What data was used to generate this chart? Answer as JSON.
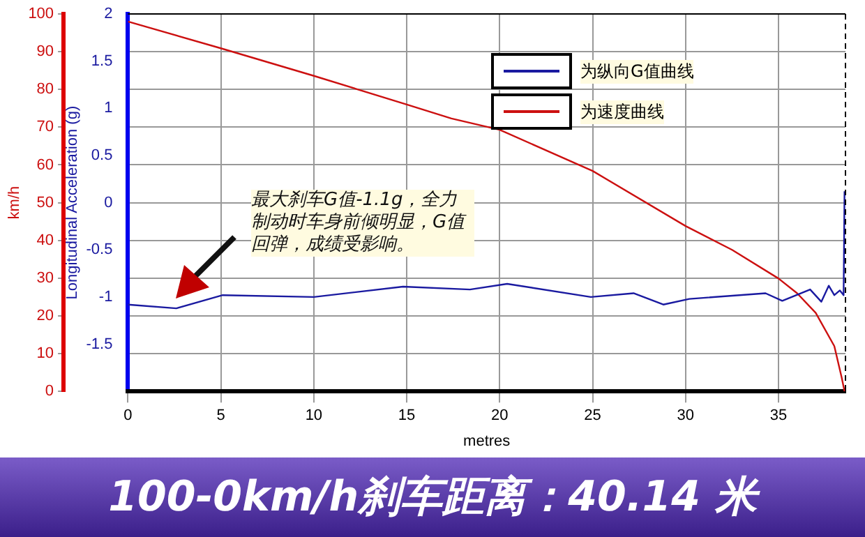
{
  "chart_data": {
    "type": "line",
    "title": "100-0km/h刹车距离：40.14 米",
    "xlabel": "metres",
    "ylabel": "km/h",
    "y2label": "Longitudinal Acceleration (g)",
    "annotations": [
      "最大刹车G值-1.1g，全力制动时车身前倾明显，G值回弹，成绩受影响。"
    ],
    "xlim": [
      0,
      38.6
    ],
    "xticks": [
      0,
      5,
      10,
      15,
      20,
      25,
      30,
      35
    ],
    "ylim": [
      0,
      100
    ],
    "yticks": [
      0,
      10,
      20,
      30,
      40,
      50,
      60,
      70,
      80,
      90,
      100
    ],
    "y2lim": [
      -2,
      2
    ],
    "y2ticks": [
      -1.5,
      -1,
      -0.5,
      0,
      0.5,
      1,
      1.5,
      2
    ],
    "grid": true,
    "legend": "top right",
    "marker": "none",
    "line_style": "solid",
    "series": [
      {
        "name": "为纵向G值曲线",
        "color": "#1a1aa0",
        "axis": "y2",
        "x": [
          0,
          2.6,
          5.1,
          10,
          14.8,
          18.4,
          20.4,
          24.9,
          27.2,
          28.8,
          30.2,
          34.3,
          35.2,
          36.7,
          37.3,
          37.7,
          38,
          38.3,
          38.5,
          38.55
        ],
        "values": [
          -1.08,
          -1.12,
          -0.98,
          -1,
          -0.89,
          -0.92,
          -0.86,
          -1,
          -0.96,
          -1.08,
          -1.02,
          -0.96,
          -1.04,
          -0.92,
          -1.05,
          -0.88,
          -0.98,
          -0.93,
          -0.98,
          0.12
        ]
      },
      {
        "name": "为速度曲线",
        "color": "#cc1010",
        "x": [
          0,
          5,
          10,
          15,
          17.4,
          20,
          25,
          30,
          32.5,
          35,
          36,
          37,
          38,
          38.4,
          38.55
        ],
        "values": [
          98,
          90.9,
          83.6,
          76,
          72.3,
          69.3,
          58.4,
          43.8,
          37.5,
          29.9,
          26,
          20.8,
          12,
          3.6,
          0
        ]
      }
    ]
  }
}
